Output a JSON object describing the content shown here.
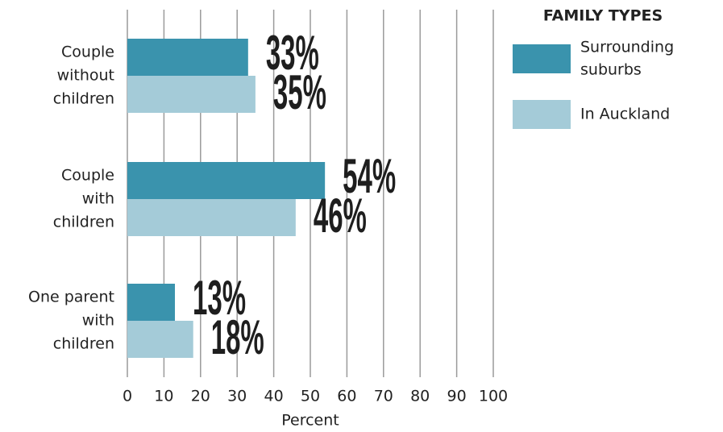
{
  "chart_data": {
    "type": "bar",
    "orientation": "horizontal",
    "categories": [
      [
        "Couple",
        "without",
        "children"
      ],
      [
        "Couple",
        "with",
        "children"
      ],
      [
        "One parent",
        "with",
        "children"
      ]
    ],
    "series": [
      {
        "name": [
          "Surrounding",
          "suburbs"
        ],
        "color": "#3a93ad",
        "values": [
          33,
          54,
          13
        ],
        "value_labels": [
          "33%",
          "54%",
          "13%"
        ]
      },
      {
        "name": [
          "In Auckland"
        ],
        "color": "#a4cbd8",
        "values": [
          35,
          46,
          18
        ],
        "value_labels": [
          "35%",
          "46%",
          "18%"
        ]
      }
    ],
    "xlim": [
      0,
      100
    ],
    "xticks": [
      0,
      10,
      20,
      30,
      40,
      50,
      60,
      70,
      80,
      90,
      100
    ],
    "xlabel": "Percent",
    "legend_title": "FAMILY TYPES",
    "legend": "upper right",
    "grid": true
  }
}
